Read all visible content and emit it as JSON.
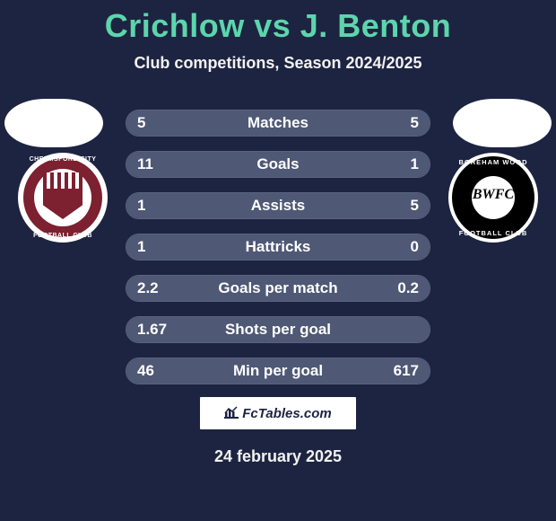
{
  "title": "Crichlow vs J. Benton",
  "subtitle": "Club competitions, Season 2024/2025",
  "date": "24 february 2025",
  "footer": {
    "site": "FcTables.com"
  },
  "colors": {
    "background": "#1d2441",
    "accent": "#5dd5ac",
    "row_bg": "#2a3254",
    "row_fill": "#4f5875",
    "row_border": "#5c6280",
    "text": "#ffffff"
  },
  "club_left": {
    "name": "Chelmsford City Football Club",
    "ring_text_top": "CHELMSFORD CITY",
    "ring_text_bottom": "FOOTBALL CLUB",
    "primary": "#7d2030",
    "secondary": "#ffffff"
  },
  "club_right": {
    "name": "Boreham Wood Football Club",
    "ring_text_top": "BOREHAM WOOD",
    "ring_text_bottom": "FOOTBALL CLUB",
    "monogram": "BWFC",
    "primary": "#000000",
    "secondary": "#ffffff"
  },
  "rows": [
    {
      "label": "Matches",
      "left": "5",
      "right": "5",
      "fill_left_pct": 50,
      "fill_right_pct": 50
    },
    {
      "label": "Goals",
      "left": "11",
      "right": "1",
      "fill_left_pct": 92,
      "fill_right_pct": 8
    },
    {
      "label": "Assists",
      "left": "1",
      "right": "5",
      "fill_left_pct": 17,
      "fill_right_pct": 83
    },
    {
      "label": "Hattricks",
      "left": "1",
      "right": "0",
      "fill_left_pct": 100,
      "fill_right_pct": 0
    },
    {
      "label": "Goals per match",
      "left": "2.2",
      "right": "0.2",
      "fill_left_pct": 92,
      "fill_right_pct": 8
    },
    {
      "label": "Shots per goal",
      "left": "1.67",
      "right": "",
      "fill_left_pct": 100,
      "fill_right_pct": 0
    },
    {
      "label": "Min per goal",
      "left": "46",
      "right": "617",
      "fill_left_pct": 93,
      "fill_right_pct": 7
    }
  ]
}
